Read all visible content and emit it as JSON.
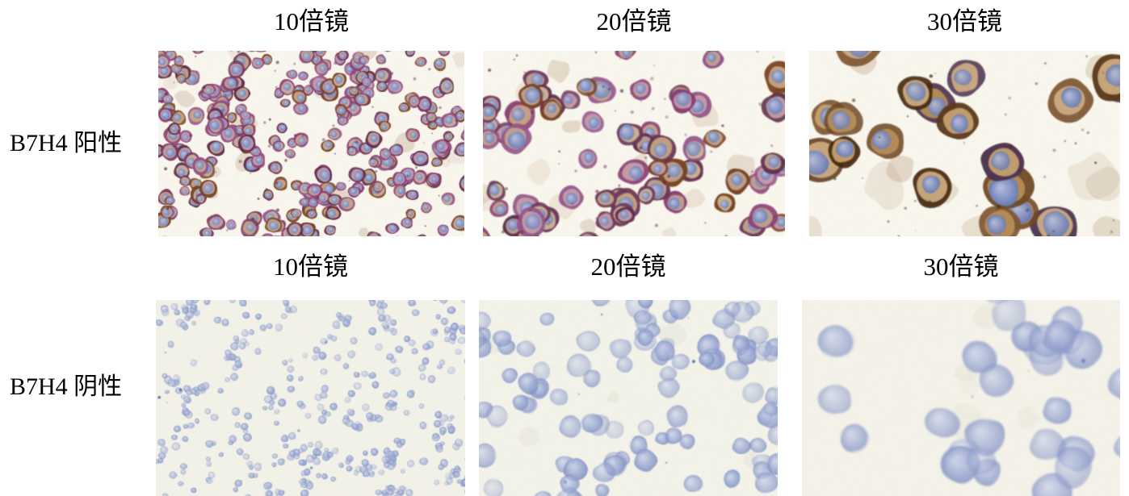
{
  "figure": {
    "background": "#ffffff",
    "text_color": "#000000",
    "rows": [
      {
        "label": "B7H4 阳性",
        "columns": [
          "10倍镜",
          "20倍镜",
          "30倍镜"
        ]
      },
      {
        "label": "B7H4 阴性",
        "columns": [
          "10倍镜",
          "20倍镜",
          "30倍镜"
        ]
      }
    ]
  },
  "micrographs": {
    "stain_colors": {
      "dab_positive_membrane": "#7a4526",
      "positive_membrane_purple": "#8a3f72",
      "hematoxylin_nucleus": "#6e82ba",
      "slide_background": "#f6f5ec"
    },
    "panels": [
      {
        "name": "b7h4-positive-10x",
        "type": "positive",
        "seed": 101,
        "background": "#f7f5ec",
        "cells": 270,
        "r_min": 6.5,
        "r_max": 12,
        "clusters": 46,
        "smudges": 20,
        "smudge_r": 10,
        "smudge_color": "#b08a6a",
        "specks": 80,
        "speck_color": "#5e2f4e",
        "blur": 0.3,
        "palette": {
          "membrane": [
            "#8f4478",
            "#7c3a64",
            "#935387",
            "#7a4526",
            "#63304f"
          ],
          "cytoplasm": [
            "#c4a4a0",
            "#c9a784",
            "#bfa0b4",
            "#cbb39b"
          ],
          "nucleus_in": "#b4c0e0",
          "nucleus_out": "#6e82ba"
        }
      },
      {
        "name": "b7h4-positive-20x",
        "type": "positive",
        "seed": 202,
        "background": "#f8f6ec",
        "cells": 80,
        "r_min": 12,
        "r_max": 20,
        "clusters": 16,
        "smudges": 14,
        "smudge_r": 14,
        "smudge_color": "#ad8663",
        "specks": 60,
        "speck_color": "#5f2f4c",
        "blur": 0.4,
        "palette": {
          "membrane": [
            "#8a3f72",
            "#6f3c5c",
            "#7a4526",
            "#94558a",
            "#5f2f4c"
          ],
          "cytoplasm": [
            "#c9a784",
            "#c2a58f",
            "#c5a0a8",
            "#d2b894"
          ],
          "nucleus_in": "#b2bedf",
          "nucleus_out": "#6a7fb8"
        }
      },
      {
        "name": "b7h4-positive-30x",
        "type": "positive",
        "seed": 303,
        "background": "#f8f6ec",
        "cells": 19,
        "r_min": 22,
        "r_max": 35,
        "clusters": 6,
        "smudges": 10,
        "smudge_r": 24,
        "smudge_color": "#a5805a",
        "specks": 40,
        "speck_color": "#4a2c14",
        "blur": 0.5,
        "palette": {
          "membrane": [
            "#5c3a1e",
            "#6f4a26",
            "#46290f",
            "#7d5633",
            "#4f3550"
          ],
          "cytoplasm": [
            "#c3985f",
            "#c9a470",
            "#b98f58",
            "#cfae82"
          ],
          "nucleus_in": "#aebbde",
          "nucleus_out": "#6478b4"
        }
      },
      {
        "name": "b7h4-negative-10x",
        "type": "negative",
        "seed": 404,
        "background": "#f2f1e8",
        "cells": 430,
        "r_min": 3,
        "r_max": 5.5,
        "clusters": 60,
        "smudges": 0,
        "smudge_r": 0,
        "smudge_color": "#c8c5b8",
        "specks": 8,
        "speck_color": "#44599c",
        "blur": 0.3,
        "palette": {
          "membrane": [],
          "cytoplasm": [],
          "nucleus_in": "#c2cbe5",
          "nucleus_out": "#8292c4"
        }
      },
      {
        "name": "b7h4-negative-20x",
        "type": "negative",
        "seed": 505,
        "background": "#f3f2e9",
        "cells": 105,
        "r_min": 9.5,
        "r_max": 15.5,
        "clusters": 18,
        "smudges": 6,
        "smudge_r": 12,
        "smudge_color": "#d4d2c6",
        "specks": 6,
        "speck_color": "#3c5092",
        "blur": 0.6,
        "palette": {
          "membrane": [],
          "cytoplasm": [],
          "nucleus_in": "#c5cee7",
          "nucleus_out": "#7f90c3"
        }
      },
      {
        "name": "b7h4-negative-30x",
        "type": "negative",
        "seed": 606,
        "background": "#f4f2e8",
        "cells": 30,
        "r_min": 18,
        "r_max": 28,
        "clusters": 7,
        "smudges": 5,
        "smudge_r": 20,
        "smudge_color": "#d8d5c8",
        "specks": 4,
        "speck_color": "#3c4f8e",
        "blur": 1.3,
        "palette": {
          "membrane": [],
          "cytoplasm": [],
          "nucleus_in": "#c8d0e8",
          "nucleus_out": "#8494c5"
        }
      }
    ]
  }
}
